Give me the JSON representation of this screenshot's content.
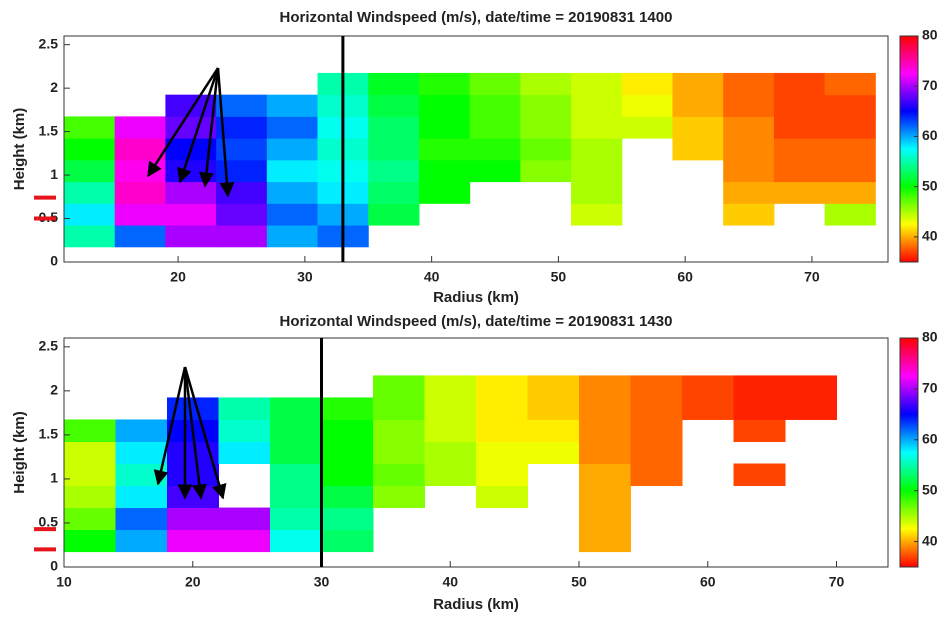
{
  "chart_data": [
    {
      "type": "heatmap",
      "title": "Horizontal Windspeed (m/s), date/time = 20190831  1400",
      "x_label": "Radius (km)",
      "y_label": "Height (km)",
      "xlim": [
        11,
        76
      ],
      "xticks": [
        20,
        30,
        40,
        50,
        60,
        70
      ],
      "ylim": [
        0,
        2.6
      ],
      "yticks": [
        0,
        0.5,
        1,
        1.5,
        2,
        2.5
      ],
      "x": [
        13,
        17,
        21,
        25,
        29,
        33,
        37,
        41,
        45,
        49,
        53,
        57,
        61,
        65,
        69,
        73
      ],
      "y": [
        0.3,
        0.55,
        0.8,
        1.05,
        1.3,
        1.55,
        1.8,
        2.05
      ],
      "z": [
        [
          55,
          58,
          55,
          52,
          50,
          48,
          null,
          null
        ],
        [
          62,
          72,
          74,
          73,
          74,
          72,
          null,
          null
        ],
        [
          70,
          72,
          70,
          66,
          65,
          68,
          67,
          null
        ],
        [
          70,
          68,
          67,
          64,
          63,
          64,
          62,
          null
        ],
        [
          60,
          62,
          60,
          58,
          60,
          62,
          60,
          null
        ],
        [
          62,
          60,
          58,
          57,
          56,
          57,
          56,
          55
        ],
        [
          null,
          52,
          53,
          54,
          53,
          53,
          52,
          51
        ],
        [
          null,
          null,
          50,
          50,
          49,
          50,
          50,
          49
        ],
        [
          null,
          null,
          null,
          50,
          49,
          48,
          48,
          47
        ],
        [
          null,
          null,
          null,
          46,
          47,
          46,
          46,
          45
        ],
        [
          null,
          44,
          45,
          45,
          45,
          44,
          44,
          44
        ],
        [
          null,
          null,
          null,
          null,
          null,
          44,
          43,
          42
        ],
        [
          null,
          null,
          null,
          null,
          41,
          41,
          40,
          40
        ],
        [
          null,
          41,
          40,
          39,
          39,
          39,
          38,
          38
        ],
        [
          null,
          null,
          40,
          38,
          38,
          37,
          37,
          37
        ],
        [
          null,
          45,
          40,
          38,
          38,
          37,
          37,
          38
        ]
      ],
      "colormap": "hsv",
      "zlim": [
        35,
        80
      ],
      "zticks": [
        40,
        50,
        60,
        70,
        80
      ],
      "vline": 33,
      "vline_color": "#000000",
      "markers": [
        0.5,
        0.74
      ],
      "marker_color": "#e8141b"
    },
    {
      "type": "heatmap",
      "title": "Horizontal Windspeed (m/s), date/time = 20190831  1430",
      "x_label": "Radius (km)",
      "y_label": "Height (km)",
      "xlim": [
        10,
        74
      ],
      "xticks": [
        10,
        20,
        30,
        40,
        50,
        60,
        70
      ],
      "ylim": [
        0,
        2.6
      ],
      "yticks": [
        0,
        0.5,
        1,
        1.5,
        2,
        2.5
      ],
      "x": [
        12,
        16,
        20,
        24,
        28,
        32,
        36,
        40,
        44,
        48,
        52,
        56,
        60,
        64,
        68
      ],
      "y": [
        0.3,
        0.55,
        0.8,
        1.05,
        1.3,
        1.55,
        1.8,
        2.05
      ],
      "z": [
        [
          50,
          47,
          45,
          44,
          44,
          48,
          null,
          null
        ],
        [
          60,
          62,
          58,
          56,
          58,
          60,
          null,
          null
        ],
        [
          72,
          70,
          67,
          66,
          66,
          65,
          64,
          null
        ],
        [
          72,
          70,
          null,
          null,
          58,
          56,
          55,
          null
        ],
        [
          57,
          55,
          54,
          54,
          52,
          52,
          52,
          null
        ],
        [
          53,
          54,
          52,
          50,
          50,
          50,
          49,
          null
        ],
        [
          null,
          null,
          46,
          47,
          46,
          46,
          47,
          47
        ],
        [
          null,
          null,
          null,
          45,
          45,
          44,
          44,
          44
        ],
        [
          null,
          null,
          44,
          43,
          43,
          42,
          42,
          42
        ],
        [
          null,
          null,
          null,
          null,
          43,
          42,
          41,
          41
        ],
        [
          40,
          40,
          40,
          40,
          39,
          39,
          39,
          39
        ],
        [
          null,
          null,
          null,
          38,
          38,
          38,
          38,
          38
        ],
        [
          null,
          null,
          null,
          null,
          null,
          null,
          37,
          37
        ],
        [
          null,
          null,
          null,
          37,
          null,
          37,
          36,
          36
        ],
        [
          null,
          null,
          null,
          null,
          null,
          null,
          36,
          36
        ]
      ],
      "colormap": "hsv",
      "zlim": [
        35,
        80
      ],
      "zticks": [
        40,
        50,
        60,
        70,
        80
      ],
      "vline": 30,
      "vline_color": "#000000",
      "markers": [
        0.2,
        0.43
      ],
      "marker_color": "#e8141b"
    }
  ]
}
